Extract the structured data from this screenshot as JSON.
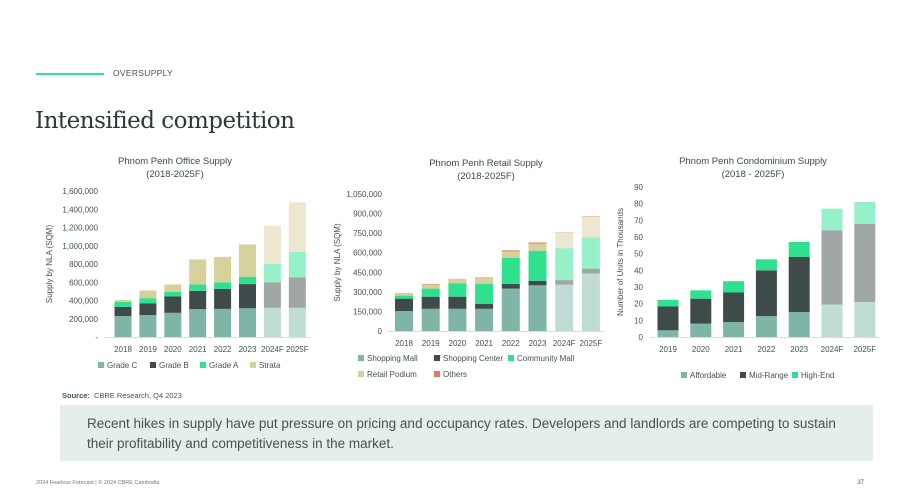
{
  "header": {
    "section": "OVERSUPPLY",
    "title": "Intensified competition"
  },
  "chart_data": [
    {
      "type": "bar",
      "stacked": true,
      "title": [
        "Phnom Penh Office Supply",
        "(2018-2025F)"
      ],
      "ylabel": "Supply by NLA (SQM)",
      "xlabel": "",
      "ylim": [
        0,
        1600000
      ],
      "yticks": [
        "-",
        "200,000",
        "400,000",
        "600,000",
        "800,000",
        "1,000,000",
        "1,200,000",
        "1,400,000",
        "1,600,000"
      ],
      "categories": [
        "2018",
        "2019",
        "2020",
        "2021",
        "2022",
        "2023",
        "2024F",
        "2025F"
      ],
      "forecast_categories": [
        "2024F",
        "2025F"
      ],
      "legend_position": "bottom",
      "series": [
        {
          "name": "Grade C",
          "color": "#7fb5a6",
          "forecast_color": "#c0ddd5",
          "values": [
            230000,
            240000,
            265000,
            305000,
            308000,
            315000,
            320000,
            320000
          ]
        },
        {
          "name": "Grade B",
          "color": "#3f4b4a",
          "forecast_color": "#a0a6a5",
          "values": [
            100000,
            130000,
            180000,
            200000,
            220000,
            265000,
            280000,
            335000
          ]
        },
        {
          "name": "Grade A",
          "color": "#2fe08f",
          "forecast_color": "#96f0c8",
          "values": [
            55000,
            55000,
            50000,
            70000,
            70000,
            80000,
            200000,
            280000
          ]
        },
        {
          "name": "Strata",
          "color": "#d6d09a",
          "forecast_color": "#ebe8cf",
          "values": [
            20000,
            85000,
            80000,
            275000,
            280000,
            355000,
            420000,
            540000
          ]
        }
      ]
    },
    {
      "type": "bar",
      "stacked": true,
      "title": [
        "Phnom Penh Retail Supply",
        "(2018-2025F)"
      ],
      "ylabel": "Supply by NLA (SQM)",
      "xlabel": "",
      "ylim": [
        0,
        1050000
      ],
      "yticks": [
        "0",
        "150,000",
        "300,000",
        "450,000",
        "600,000",
        "750,000",
        "900,000",
        "1,050,000"
      ],
      "categories": [
        "2018",
        "2019",
        "2020",
        "2021",
        "2022",
        "2023",
        "2024F",
        "2025F"
      ],
      "forecast_categories": [
        "2024F",
        "2025F"
      ],
      "legend_position": "bottom",
      "series": [
        {
          "name": "Shopping Mall",
          "color": "#7fb5a6",
          "forecast_color": "#c0ddd5",
          "values": [
            153000,
            170000,
            170000,
            170000,
            325000,
            350000,
            355000,
            440000
          ]
        },
        {
          "name": "Shopping Center",
          "color": "#3f4b4a",
          "forecast_color": "#a0a6a5",
          "values": [
            95000,
            93000,
            93000,
            37000,
            35000,
            35000,
            35000,
            38000
          ]
        },
        {
          "name": "Community Mall",
          "color": "#2fe08f",
          "forecast_color": "#96f0c8",
          "values": [
            23000,
            62000,
            103000,
            153000,
            200000,
            230000,
            245000,
            240000
          ]
        },
        {
          "name": "Retail Podium",
          "color": "#d6d09a",
          "forecast_color": "#ebe8cf",
          "values": [
            13000,
            33000,
            35000,
            54000,
            50000,
            55000,
            118000,
            155000
          ]
        },
        {
          "name": "Others",
          "color": "#e07a5f",
          "forecast_color": "#f0c0b0",
          "values": [
            4000,
            3000,
            0,
            0,
            8000,
            8000,
            5000,
            8000
          ]
        }
      ]
    },
    {
      "type": "bar",
      "stacked": true,
      "title": [
        "Phnom Penh Condominium Supply",
        "(2018 - 2025F)"
      ],
      "ylabel": "Number of Units in Thousands",
      "xlabel": "",
      "ylim": [
        0,
        90
      ],
      "yticks": [
        "0",
        "10",
        "20",
        "30",
        "40",
        "50",
        "60",
        "70",
        "80",
        "90"
      ],
      "categories": [
        "2019",
        "2020",
        "2021",
        "2022",
        "2023",
        "2024F",
        "2025F"
      ],
      "forecast_categories": [
        "2024F",
        "2025F"
      ],
      "legend_position": "bottom",
      "series": [
        {
          "name": "Affordable",
          "color": "#7fb5a6",
          "forecast_color": "#c0ddd5",
          "values": [
            4,
            8,
            9,
            12.5,
            15,
            19.5,
            21
          ]
        },
        {
          "name": "Mid-Range",
          "color": "#3f4b4a",
          "forecast_color": "#a0a6a5",
          "values": [
            14.3,
            15,
            17.7,
            27.5,
            33,
            44.5,
            47
          ]
        },
        {
          "name": "High-End",
          "color": "#2fe08f",
          "forecast_color": "#96f0c8",
          "values": [
            4,
            5,
            6.8,
            6.6,
            9,
            13,
            13
          ]
        }
      ]
    }
  ],
  "source": {
    "label": "Source:",
    "text": "CBRE Research, Q4 2023"
  },
  "callout": "Recent hikes in supply have put pressure on pricing and occupancy rates. Developers and landlords are competing to sustain their profitability and competitiveness in the market.",
  "footer": {
    "text": "2024 Fearless Forecast | © 2024 CBRE Cambodia",
    "page": "37"
  }
}
